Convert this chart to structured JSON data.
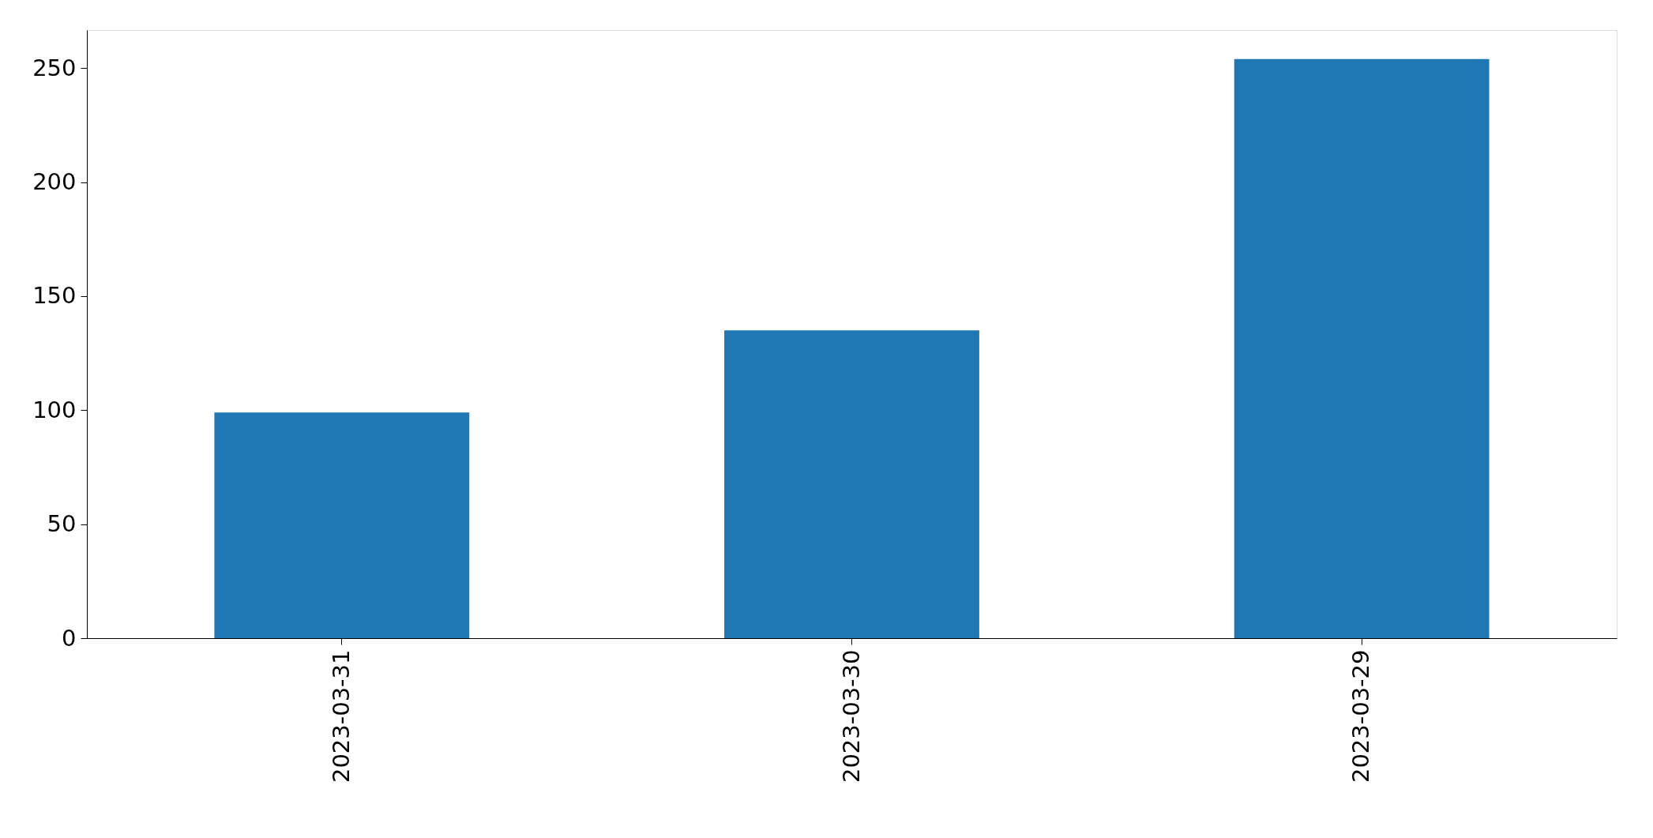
{
  "chart_data": {
    "type": "bar",
    "categories": [
      "2023-03-31",
      "2023-03-30",
      "2023-03-29"
    ],
    "values": [
      99,
      135,
      254
    ],
    "color": "#1f77b4",
    "ylim": [
      0,
      266.7
    ],
    "yticks": [
      0,
      50,
      100,
      150,
      200,
      250
    ],
    "grid": false
  }
}
